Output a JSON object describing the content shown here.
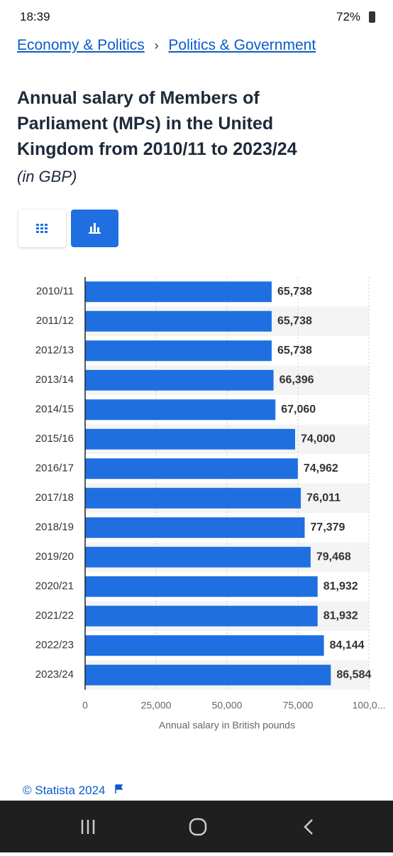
{
  "status_bar": {
    "time": "18:39",
    "battery": "72%"
  },
  "breadcrumbs": {
    "items": [
      "Economy & Politics",
      "Politics & Government"
    ],
    "separator": "›"
  },
  "title": "Annual salary of Members of Parliament (MPs) in the United Kingdom from 2010/11 to 2023/24",
  "subtitle": "(in GBP)",
  "chart_data": {
    "type": "bar",
    "orientation": "horizontal",
    "color": "#1f6fe0",
    "categories": [
      "2010/11",
      "2011/12",
      "2012/13",
      "2013/14",
      "2014/15",
      "2015/16",
      "2016/17",
      "2017/18",
      "2018/19",
      "2019/20",
      "2020/21",
      "2021/22",
      "2022/23",
      "2023/24"
    ],
    "values": [
      65738,
      65738,
      65738,
      66396,
      67060,
      74000,
      74962,
      76011,
      77379,
      79468,
      81932,
      81932,
      84144,
      86584
    ],
    "value_labels": [
      "65,738",
      "65,738",
      "65,738",
      "66,396",
      "67,060",
      "74,000",
      "74,962",
      "76,011",
      "77,379",
      "79,468",
      "81,932",
      "81,932",
      "84,144",
      "86,584"
    ],
    "xlim": [
      0,
      100000
    ],
    "xticks": [
      0,
      {
        "value": 25000,
        "label": "25,000"
      },
      {
        "value": 50000,
        "label": "50,000"
      },
      {
        "value": 75000,
        "label": "75,000"
      },
      {
        "value": 100000,
        "label": "100,0..."
      }
    ],
    "xlabel": "Annual salary in British pounds",
    "grid": true
  },
  "footer": "© Statista 2024"
}
